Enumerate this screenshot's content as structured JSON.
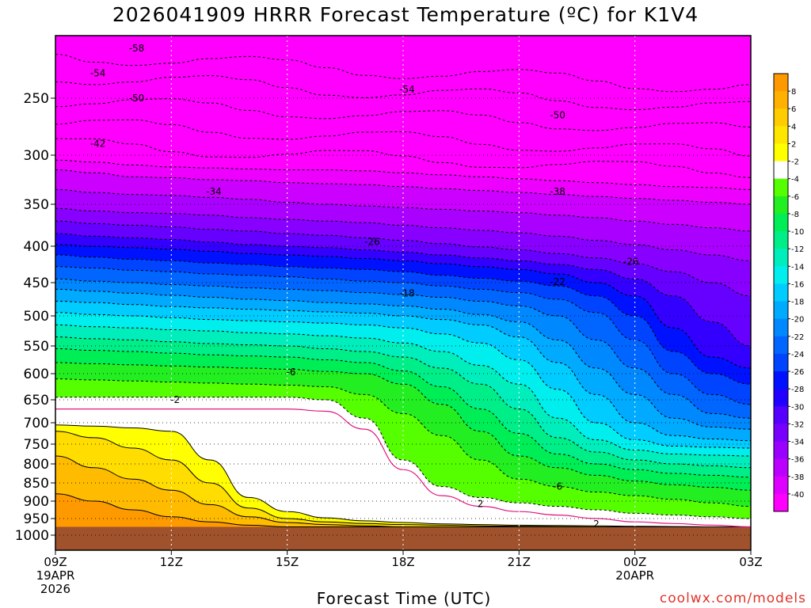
{
  "title": "2026041909 HRRR Forecast Temperature (ºC) for K1V4",
  "credit": "coolwx.com/models",
  "chart_data": {
    "type": "heatmap",
    "title": "2026041909 HRRR Forecast Temperature (ºC) for K1V4",
    "xlabel": "Forecast Time (UTC)",
    "ylabel": "",
    "x_ticks": [
      {
        "value": 0,
        "label": "09Z",
        "sub": [
          "19APR",
          "2026"
        ]
      },
      {
        "value": 3,
        "label": "12Z",
        "sub": []
      },
      {
        "value": 6,
        "label": "15Z",
        "sub": []
      },
      {
        "value": 9,
        "label": "18Z",
        "sub": []
      },
      {
        "value": 12,
        "label": "21Z",
        "sub": []
      },
      {
        "value": 15,
        "label": "00Z",
        "sub": [
          "20APR"
        ]
      },
      {
        "value": 18,
        "label": "03Z",
        "sub": []
      }
    ],
    "xlim": [
      0,
      18
    ],
    "y_ticks": [
      250,
      300,
      350,
      400,
      450,
      500,
      550,
      600,
      650,
      700,
      750,
      800,
      850,
      900,
      950,
      1000
    ],
    "ylim": [
      200,
      1025
    ],
    "colorbar": {
      "labels": [
        "8",
        "6",
        "4",
        "2",
        "-2",
        "-4",
        "-6",
        "-8",
        "-10",
        "-12",
        "-14",
        "-16",
        "-18",
        "-20",
        "-22",
        "-24",
        "-26",
        "-28",
        "-30",
        "-32",
        "-34",
        "-36",
        "-38",
        "-40"
      ],
      "colors": [
        "#ff9900",
        "#ffb000",
        "#ffcc00",
        "#ffe600",
        "#ffff00",
        "#ffffff",
        "#55ff00",
        "#22ee22",
        "#00ee55",
        "#00ee88",
        "#00eebb",
        "#00eeee",
        "#00ccff",
        "#00aaff",
        "#0088ff",
        "#0066ff",
        "#0044ff",
        "#0011ff",
        "#2200ff",
        "#5500ff",
        "#7700ff",
        "#9900ff",
        "#bb00ff",
        "#dd00ff",
        "#ff00ff"
      ]
    },
    "bands": [
      {
        "temp": -58,
        "color": "#ff00ff",
        "p": [
          200,
          200,
          200,
          200,
          200,
          200,
          200,
          200,
          200,
          200,
          200,
          200,
          200,
          200,
          200,
          200,
          200,
          200,
          200
        ]
      },
      {
        "temp": -44,
        "color": "#ee00ff",
        "p": [
          305,
          307,
          310,
          312,
          313,
          314,
          315,
          315,
          316,
          318,
          320,
          322,
          324,
          326,
          328,
          330,
          332,
          333,
          335
        ]
      },
      {
        "temp": -40,
        "color": "#cc00ff",
        "p": [
          315,
          318,
          322,
          323,
          325,
          326,
          328,
          329,
          330,
          332,
          334,
          336,
          338,
          340,
          342,
          344,
          346,
          348,
          350
        ]
      },
      {
        "temp": -36,
        "color": "#aa00ff",
        "p": [
          335,
          338,
          340,
          341,
          343,
          345,
          348,
          350,
          352,
          354,
          356,
          358,
          360,
          363,
          366,
          370,
          374,
          378,
          382
        ]
      },
      {
        "temp": -32,
        "color": "#8800ff",
        "p": [
          355,
          358,
          360,
          361,
          363,
          366,
          368,
          370,
          372,
          375,
          378,
          381,
          384,
          388,
          393,
          398,
          405,
          412,
          420
        ]
      },
      {
        "temp": -30,
        "color": "#6600ff",
        "p": [
          370,
          373,
          375,
          377,
          380,
          382,
          385,
          387,
          390,
          393,
          397,
          401,
          405,
          410,
          416,
          424,
          435,
          450,
          470
        ]
      },
      {
        "temp": -28,
        "color": "#3300ff",
        "p": [
          385,
          388,
          390,
          392,
          395,
          398,
          400,
          402,
          405,
          408,
          412,
          416,
          420,
          425,
          432,
          445,
          470,
          510,
          550
        ]
      },
      {
        "temp": -26,
        "color": "#0011ff",
        "p": [
          398,
          400,
          402,
          404,
          407,
          410,
          412,
          414,
          417,
          420,
          424,
          428,
          432,
          438,
          450,
          470,
          520,
          570,
          590
        ]
      },
      {
        "temp": -24,
        "color": "#0044ff",
        "p": [
          412,
          415,
          418,
          420,
          423,
          425,
          428,
          430,
          432,
          435,
          440,
          444,
          448,
          455,
          470,
          500,
          560,
          600,
          620
        ]
      },
      {
        "temp": -22,
        "color": "#0066ff",
        "p": [
          428,
          430,
          433,
          435,
          438,
          440,
          442,
          445,
          448,
          450,
          455,
          460,
          465,
          475,
          495,
          540,
          600,
          640,
          660
        ]
      },
      {
        "temp": -20,
        "color": "#0088ff",
        "p": [
          445,
          448,
          450,
          453,
          455,
          458,
          460,
          462,
          465,
          468,
          472,
          478,
          485,
          500,
          540,
          590,
          640,
          680,
          690
        ]
      },
      {
        "temp": -18,
        "color": "#00aaff",
        "p": [
          460,
          463,
          466,
          469,
          472,
          475,
          477,
          480,
          482,
          485,
          490,
          498,
          510,
          540,
          590,
          640,
          690,
          710,
          715
        ]
      },
      {
        "temp": -16,
        "color": "#00ccff",
        "p": [
          478,
          480,
          483,
          486,
          488,
          490,
          492,
          494,
          496,
          500,
          506,
          515,
          535,
          580,
          640,
          700,
          730,
          738,
          742
        ]
      },
      {
        "temp": -14,
        "color": "#00eeee",
        "p": [
          495,
          498,
          500,
          503,
          506,
          508,
          510,
          512,
          515,
          520,
          530,
          545,
          575,
          630,
          700,
          740,
          755,
          758,
          760
        ]
      },
      {
        "temp": -12,
        "color": "#00eebb",
        "p": [
          515,
          518,
          520,
          523,
          525,
          528,
          530,
          533,
          537,
          545,
          560,
          585,
          620,
          690,
          740,
          765,
          775,
          778,
          780
        ]
      },
      {
        "temp": -10,
        "color": "#00ee88",
        "p": [
          535,
          538,
          540,
          543,
          546,
          548,
          550,
          555,
          560,
          570,
          590,
          620,
          670,
          735,
          770,
          790,
          800,
          805,
          810
        ]
      },
      {
        "temp": -8,
        "color": "#00ee55",
        "p": [
          555,
          558,
          560,
          563,
          566,
          568,
          570,
          575,
          580,
          595,
          625,
          670,
          725,
          775,
          800,
          815,
          825,
          830,
          835
        ]
      },
      {
        "temp": -6,
        "color": "#22ee22",
        "p": [
          580,
          582,
          584,
          586,
          588,
          590,
          592,
          596,
          600,
          620,
          660,
          720,
          780,
          810,
          830,
          845,
          855,
          862,
          870
        ]
      },
      {
        "temp": -4,
        "color": "#55ff00",
        "p": [
          610,
          612,
          614,
          616,
          618,
          620,
          622,
          625,
          640,
          680,
          730,
          790,
          840,
          860,
          875,
          885,
          895,
          905,
          915
        ]
      },
      {
        "temp": -2,
        "color": "#ffffff",
        "p": [
          645,
          645,
          645,
          645,
          645,
          645,
          645,
          650,
          690,
          790,
          860,
          890,
          905,
          915,
          925,
          935,
          940,
          945,
          950
        ]
      },
      {
        "temp": 2,
        "color": "#ffff00",
        "p": [
          705,
          708,
          712,
          720,
          790,
          890,
          930,
          948,
          957,
          962,
          966,
          968,
          970,
          971,
          972,
          973,
          974,
          975,
          975
        ]
      },
      {
        "temp": 4,
        "color": "#ffdd00",
        "p": [
          720,
          735,
          760,
          790,
          850,
          920,
          950,
          960,
          965,
          968,
          970,
          972,
          973,
          974,
          975,
          975,
          975,
          975,
          975
        ]
      },
      {
        "temp": 6,
        "color": "#ffbb00",
        "p": [
          780,
          810,
          840,
          870,
          910,
          945,
          962,
          968,
          972,
          975,
          975,
          975,
          975,
          975,
          975,
          975,
          975,
          975,
          975
        ]
      },
      {
        "temp": 8,
        "color": "#ff9900",
        "p": [
          880,
          900,
          925,
          945,
          960,
          970,
          975,
          975,
          975,
          975,
          975,
          975,
          975,
          975,
          975,
          975,
          975,
          975,
          975
        ]
      }
    ],
    "ground": {
      "color": "#a0522d",
      "p_top": 975
    },
    "contour_labels": [
      {
        "text": "-58",
        "x": 2.1,
        "p": 210
      },
      {
        "text": "-54",
        "x": 1.1,
        "p": 230
      },
      {
        "text": "-50",
        "x": 2.1,
        "p": 250
      },
      {
        "text": "-42",
        "x": 1.1,
        "p": 290
      },
      {
        "text": "-54",
        "x": 9.1,
        "p": 243
      },
      {
        "text": "-50",
        "x": 13.0,
        "p": 265
      },
      {
        "text": "-34",
        "x": 4.1,
        "p": 337
      },
      {
        "text": "-38",
        "x": 13.0,
        "p": 337
      },
      {
        "text": "-26",
        "x": 8.2,
        "p": 395
      },
      {
        "text": "-26",
        "x": 14.9,
        "p": 421
      },
      {
        "text": "-22",
        "x": 13.0,
        "p": 449
      },
      {
        "text": "-18",
        "x": 9.1,
        "p": 466
      },
      {
        "text": "-6",
        "x": 6.1,
        "p": 597
      },
      {
        "text": "-2",
        "x": 3.1,
        "p": 650
      },
      {
        "text": "-6",
        "x": 13.0,
        "p": 860
      },
      {
        "text": "2",
        "x": 11.0,
        "p": 908
      },
      {
        "text": "2",
        "x": 14.0,
        "p": 967
      }
    ]
  }
}
